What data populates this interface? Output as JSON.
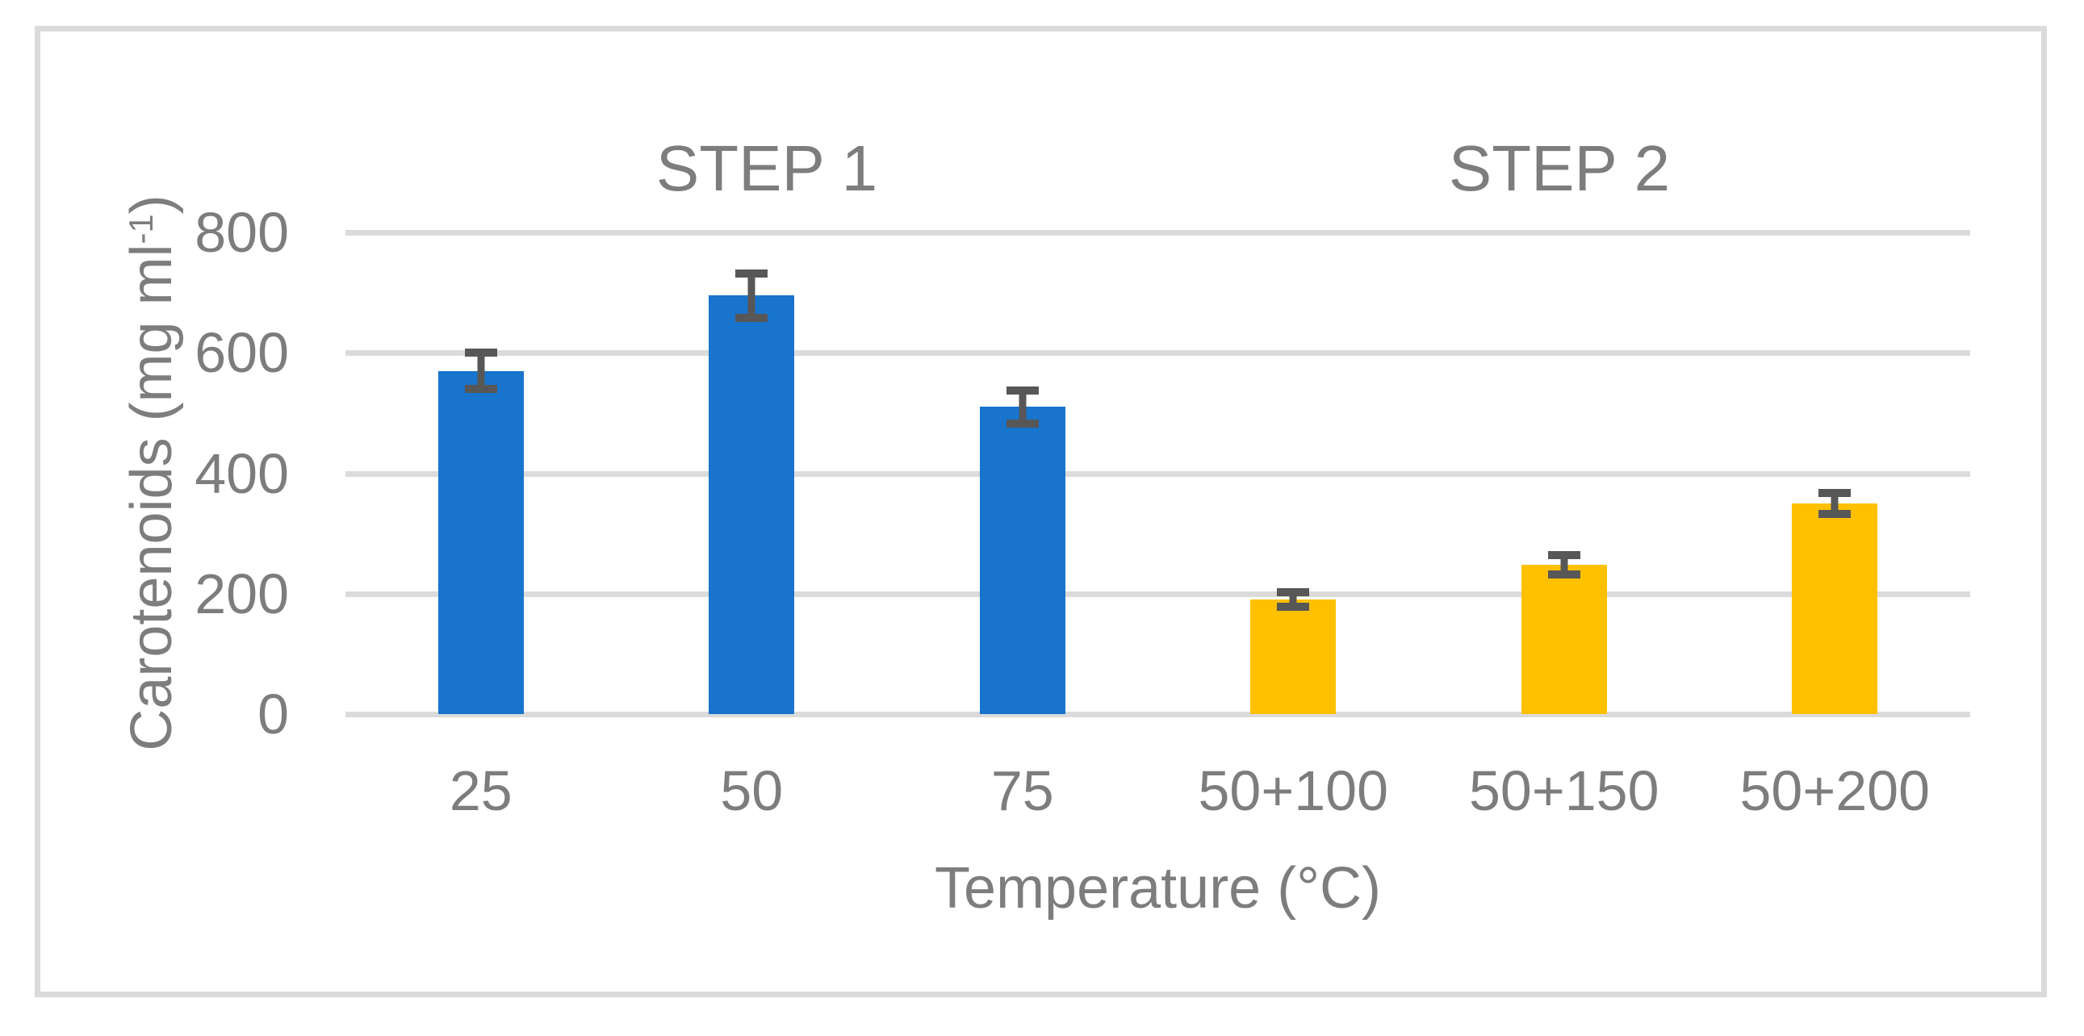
{
  "figure": {
    "background_color": "#ffffff",
    "border_color": "#dbdbdb"
  },
  "chart_data": {
    "type": "bar",
    "title": "",
    "xlabel": "Temperature (°C)",
    "ylabel": "Carotenoids (mg ml⁻¹)",
    "ylabel_parts": {
      "main": "Carotenoids (mg ml",
      "sup": "-1",
      "close": ")"
    },
    "categories": [
      "25",
      "50",
      "75",
      "50+100",
      "50+150",
      "50+200"
    ],
    "values": [
      570,
      695,
      510,
      190,
      248,
      350
    ],
    "errors": [
      30,
      37,
      27,
      12,
      16,
      17
    ],
    "series_groups": [
      {
        "name": "STEP 1",
        "category_indices": [
          0,
          1,
          2
        ],
        "color": "#1874cc"
      },
      {
        "name": "STEP 2",
        "category_indices": [
          3,
          4,
          5
        ],
        "color": "#ffc000"
      }
    ],
    "bar_colors": [
      "#1874cc",
      "#1874cc",
      "#1874cc",
      "#ffc000",
      "#ffc000",
      "#ffc000"
    ],
    "annotations": [
      {
        "text": "STEP 1"
      },
      {
        "text": "STEP 2"
      }
    ],
    "ylim": [
      0,
      800
    ],
    "yticks": [
      0,
      200,
      400,
      600,
      800
    ],
    "ytick_labels": [
      "800",
      "600",
      "400",
      "200",
      "0"
    ],
    "grid": true,
    "gridline_color": "#dbdbdb",
    "error_bar_color": "#575757",
    "text_color": "#7d7d7d",
    "legend": "none"
  }
}
